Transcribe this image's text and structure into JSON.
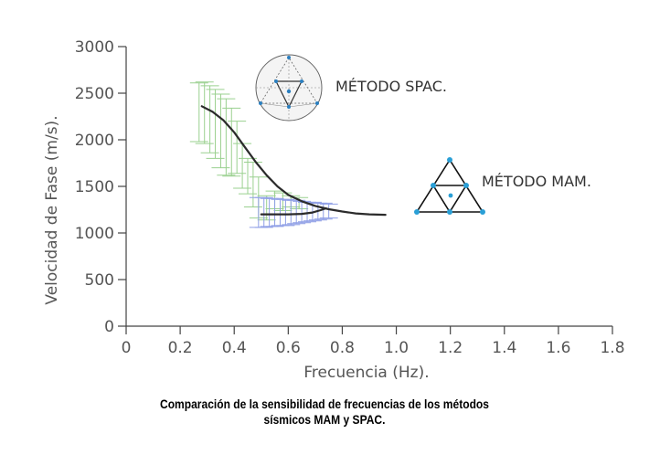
{
  "chart_data": {
    "type": "line",
    "title": "",
    "xlabel": "Frecuencia (Hz).",
    "ylabel": "Velocidad de Fase (m/s).",
    "xlim": [
      0,
      1.8
    ],
    "ylim": [
      0,
      3000
    ],
    "x_ticks": [
      "0",
      "0.2",
      "0.4",
      "0.6",
      "0.8",
      "1.0",
      "1.2",
      "1.4",
      "1.6",
      "1.8"
    ],
    "y_ticks": [
      "0",
      "500",
      "1000",
      "1500",
      "2000",
      "2500",
      "3000"
    ],
    "grid": false,
    "series": [
      {
        "name": "MÉTODO SPAC.",
        "color": "#2b2b2b",
        "x": [
          0.28,
          0.32,
          0.36,
          0.4,
          0.44,
          0.48,
          0.52,
          0.56,
          0.6,
          0.65,
          0.7,
          0.75,
          0.8,
          0.85,
          0.9,
          0.96
        ],
        "y": [
          2360,
          2300,
          2210,
          2080,
          1920,
          1760,
          1620,
          1500,
          1410,
          1340,
          1290,
          1255,
          1230,
          1210,
          1200,
          1195
        ]
      },
      {
        "name": "MÉTODO MAM.",
        "color": "#2b2b2b",
        "x": [
          0.5,
          0.55,
          0.6,
          0.65,
          0.69,
          0.72,
          0.74
        ],
        "y": [
          1200,
          1200,
          1200,
          1205,
          1220,
          1245,
          1265
        ]
      }
    ],
    "error_bars": [
      {
        "color": "#9ad08f",
        "x": [
          0.27,
          0.29,
          0.31,
          0.33,
          0.35,
          0.37,
          0.39,
          0.41,
          0.43,
          0.45,
          0.47,
          0.49,
          0.52,
          0.55,
          0.58,
          0.61,
          0.64
        ],
        "low": [
          1980,
          1960,
          1860,
          1800,
          1700,
          1620,
          1610,
          1640,
          1480,
          1420,
          1280,
          1160,
          1140,
          1260,
          1240,
          1280,
          1260
        ],
        "high": [
          2610,
          2620,
          2580,
          2540,
          2490,
          2440,
          2340,
          2200,
          1960,
          1800,
          1760,
          1600,
          1400,
          1450,
          1430,
          1400,
          1380
        ]
      },
      {
        "color": "#8f9fe6",
        "x": [
          0.49,
          0.51,
          0.53,
          0.55,
          0.57,
          0.59,
          0.61,
          0.63,
          0.65,
          0.67,
          0.69,
          0.71,
          0.73,
          0.75
        ],
        "low": [
          1060,
          1060,
          1070,
          1070,
          1080,
          1080,
          1090,
          1100,
          1110,
          1120,
          1130,
          1140,
          1150,
          1160
        ],
        "high": [
          1380,
          1380,
          1370,
          1370,
          1360,
          1360,
          1350,
          1350,
          1340,
          1330,
          1330,
          1320,
          1320,
          1310
        ]
      }
    ],
    "annotations": [
      "MÉTODO SPAC.",
      "MÉTODO MAM."
    ]
  },
  "caption": {
    "line1": "Comparación de la sensibilidad de frecuencias de los métodos",
    "line2": "sísmicos MAM y SPAC."
  }
}
